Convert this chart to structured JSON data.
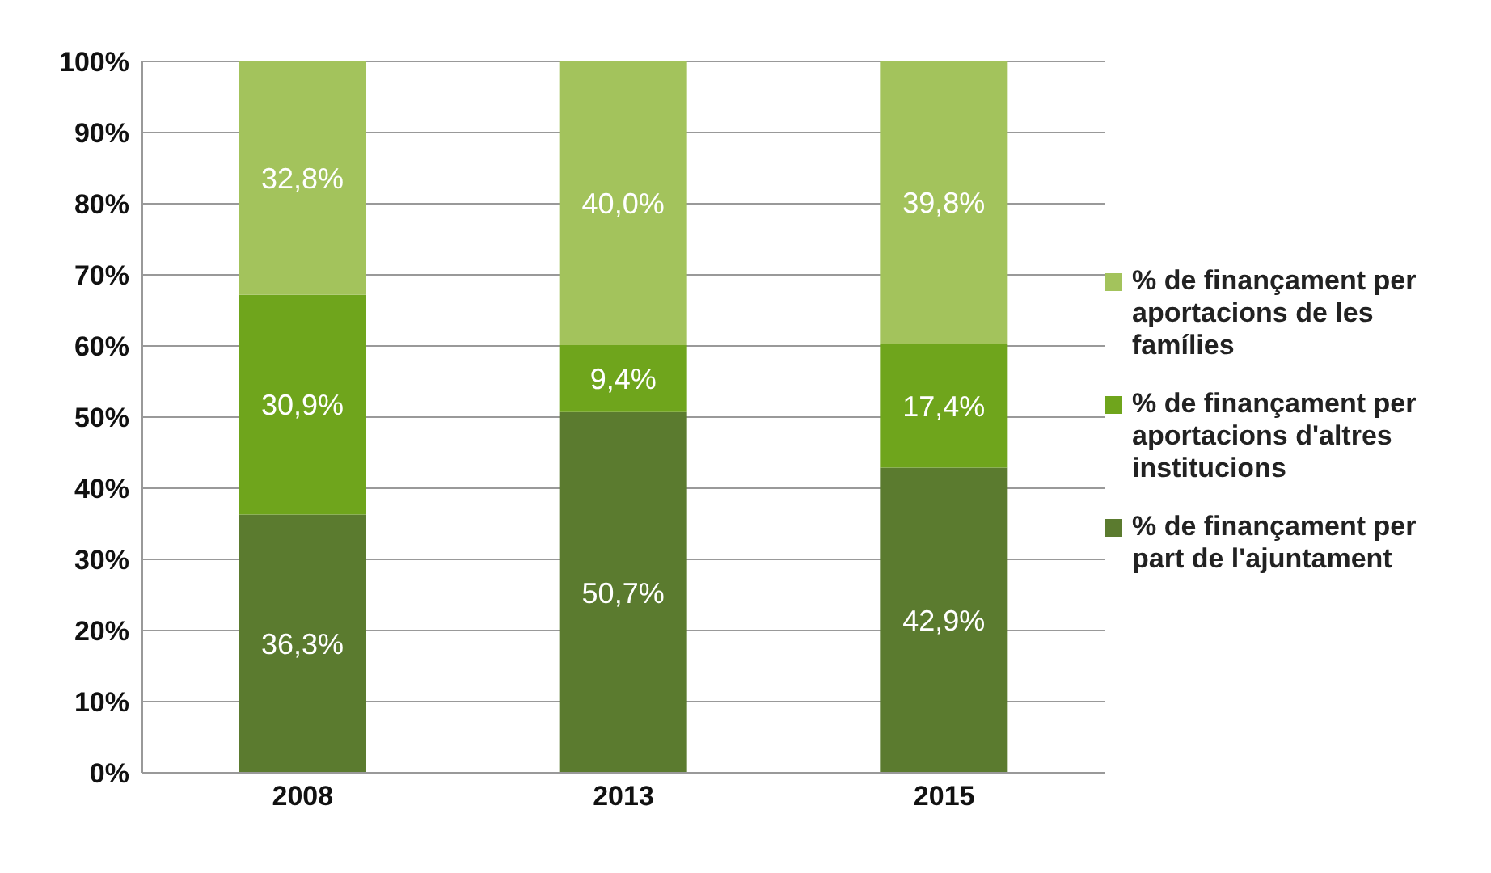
{
  "chart_data": {
    "type": "bar",
    "stacked": true,
    "categories": [
      "2008",
      "2013",
      "2015"
    ],
    "series": [
      {
        "name": "% de finançament per part de l'ajuntament",
        "color": "#5b7b2f",
        "values": [
          36.3,
          50.7,
          42.9
        ],
        "value_labels": [
          "36,3%",
          "50,7%",
          "42,9%"
        ]
      },
      {
        "name": "% de finançament per aportacions d'altres institucions",
        "color": "#6fa51c",
        "values": [
          30.9,
          9.4,
          17.4
        ],
        "value_labels": [
          "30,9%",
          "9,4%",
          "17,4%"
        ]
      },
      {
        "name": "% de finançament per aportacions de les famílies",
        "color": "#a3c35c",
        "values": [
          32.8,
          40.0,
          39.8
        ],
        "value_labels": [
          "32,8%",
          "40,0%",
          "39,8%"
        ]
      }
    ],
    "ylim": [
      0,
      100
    ],
    "yticks": [
      {
        "value": 0,
        "label": "0%"
      },
      {
        "value": 10,
        "label": "10%"
      },
      {
        "value": 20,
        "label": "20%"
      },
      {
        "value": 30,
        "label": "30%"
      },
      {
        "value": 40,
        "label": "40%"
      },
      {
        "value": 50,
        "label": "50%"
      },
      {
        "value": 60,
        "label": "60%"
      },
      {
        "value": 70,
        "label": "70%"
      },
      {
        "value": 80,
        "label": "80%"
      },
      {
        "value": 90,
        "label": "90%"
      },
      {
        "value": 100,
        "label": "100%"
      }
    ],
    "grid": "y",
    "legend": "right"
  }
}
